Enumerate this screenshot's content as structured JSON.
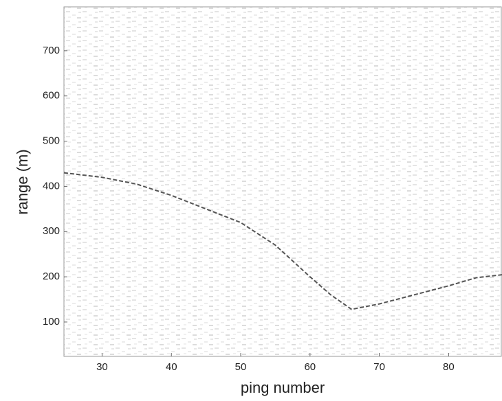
{
  "chart_data": {
    "type": "line",
    "xlabel": "ping number",
    "ylabel": "range (m)",
    "x": [
      24.5,
      30,
      35,
      40,
      45,
      50,
      55,
      60,
      63,
      66,
      70,
      75,
      80,
      84,
      88
    ],
    "series": [
      {
        "color": "#555555",
        "values": [
          430,
          420,
          405,
          380,
          350,
          320,
          270,
          200,
          160,
          128,
          140,
          160,
          180,
          198,
          205
        ]
      }
    ],
    "xlim": [
      24.5,
      87.6
    ],
    "xticks": [
      30,
      40,
      50,
      60,
      70,
      80
    ],
    "ylim": [
      24,
      797
    ],
    "yticks": [
      100,
      200,
      300,
      400,
      500,
      600,
      700
    ]
  }
}
